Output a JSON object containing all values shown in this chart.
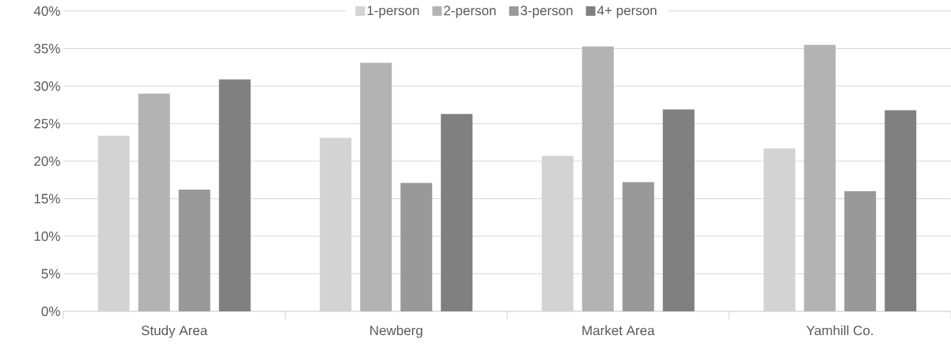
{
  "chart_data": {
    "type": "bar",
    "categories": [
      "Study Area",
      "Newberg",
      "Market Area",
      "Yamhill Co."
    ],
    "series": [
      {
        "name": "1-person",
        "color": "#d3d3d3",
        "values": [
          23.4,
          23.1,
          20.7,
          21.7
        ]
      },
      {
        "name": "2-person",
        "color": "#b3b3b3",
        "values": [
          29.0,
          33.1,
          35.3,
          35.5
        ]
      },
      {
        "name": "3-person",
        "color": "#999999",
        "values": [
          16.2,
          17.1,
          17.2,
          16.0
        ]
      },
      {
        "name": "4+ person",
        "color": "#808080",
        "values": [
          30.9,
          26.3,
          26.9,
          26.8
        ]
      }
    ],
    "ylim": [
      0,
      40
    ],
    "yticks": [
      {
        "value": 0,
        "label": "0%"
      },
      {
        "value": 5,
        "label": "5%"
      },
      {
        "value": 10,
        "label": "10%"
      },
      {
        "value": 15,
        "label": "15%"
      },
      {
        "value": 20,
        "label": "20%"
      },
      {
        "value": 25,
        "label": "25%"
      },
      {
        "value": 30,
        "label": "30%"
      },
      {
        "value": 35,
        "label": "35%"
      },
      {
        "value": 40,
        "label": "40%"
      }
    ],
    "grid": "y",
    "legend": "top"
  }
}
